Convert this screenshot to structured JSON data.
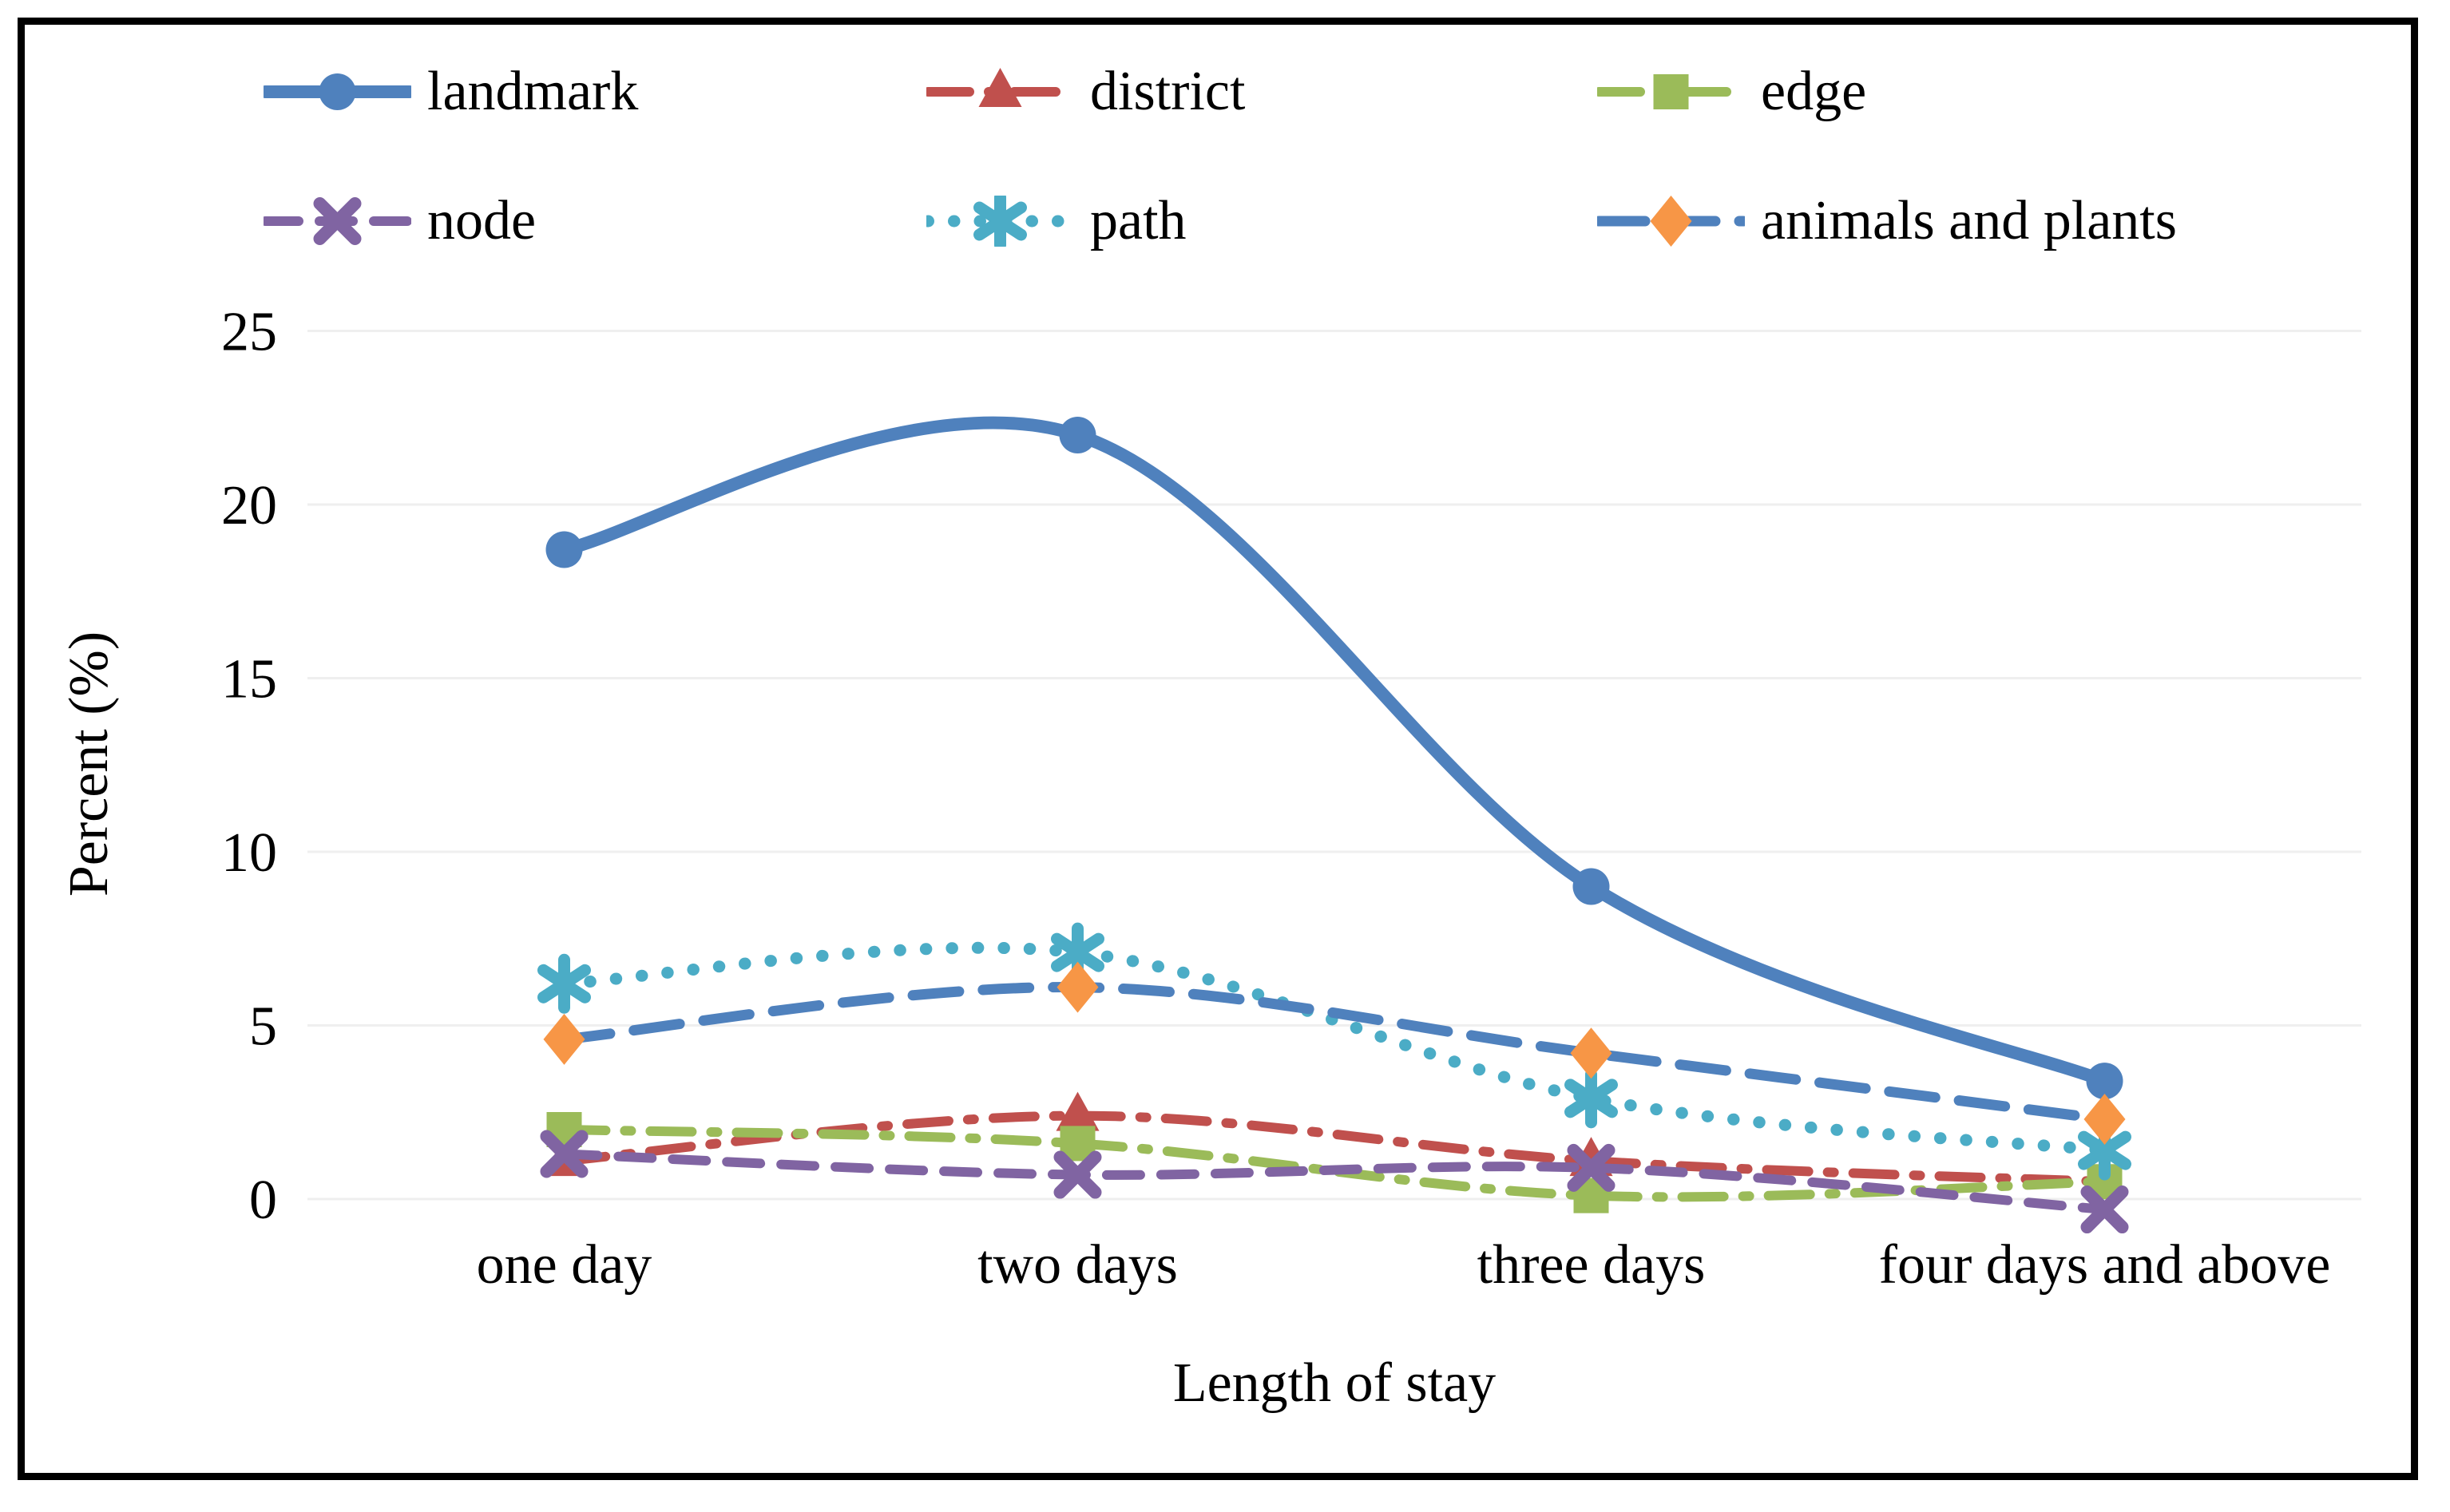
{
  "figure": {
    "background": "#ffffff",
    "border_color": "#000000",
    "text_color": "#000000",
    "gridline_color": "#efefef"
  },
  "legend": {
    "position": "top",
    "rows": 2,
    "entries": [
      "landmark",
      "district",
      "edge",
      "node",
      "path",
      "animals and plants"
    ]
  },
  "chart_data": {
    "type": "line",
    "title": "",
    "xlabel": "Length of stay",
    "ylabel": "Percent (%)",
    "categories": [
      "one day",
      "two days",
      "three days",
      "four days and above"
    ],
    "ylim": [
      0,
      25
    ],
    "yticks": [
      0,
      5,
      10,
      15,
      20,
      25
    ],
    "grid": "horizontal",
    "line_smoothing": true,
    "series": [
      {
        "name": "landmark",
        "color": "#4F81BD",
        "line": "solid",
        "marker": "circle",
        "values": [
          18.7,
          22.0,
          9.0,
          3.4
        ]
      },
      {
        "name": "district",
        "color": "#C0504D",
        "line": "dash-dot",
        "marker": "triangle",
        "values": [
          1.1,
          2.4,
          1.1,
          0.5
        ]
      },
      {
        "name": "edge",
        "color": "#9BBB59",
        "line": "dash-dot",
        "marker": "square",
        "values": [
          2.0,
          1.6,
          0.1,
          0.5
        ]
      },
      {
        "name": "node",
        "color": "#8064A2",
        "line": "dash",
        "marker": "x",
        "values": [
          1.3,
          0.7,
          0.9,
          -0.3
        ]
      },
      {
        "name": "path",
        "color": "#4BACC6",
        "line": "dot",
        "marker": "asterisk",
        "values": [
          6.2,
          7.1,
          2.9,
          1.4
        ]
      },
      {
        "name": "animals and plants",
        "color": "#4F81BD",
        "marker_color": "#F79646",
        "line": "long-dash",
        "marker": "diamond",
        "values": [
          4.6,
          6.1,
          4.2,
          2.3
        ]
      }
    ]
  }
}
